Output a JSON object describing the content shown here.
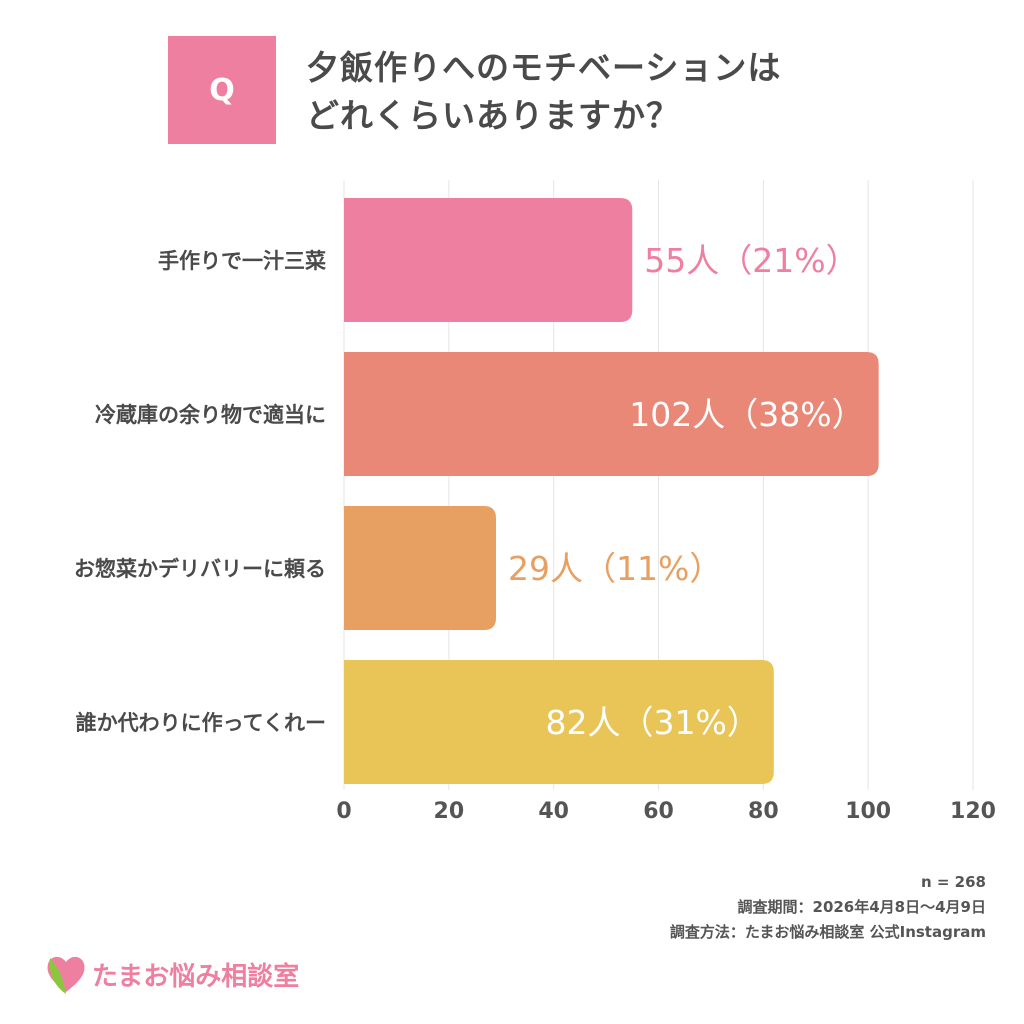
{
  "question": {
    "badge": "Q",
    "line1": "夕飯作りへのモチベーションは",
    "line2": "どれくらいありますか？"
  },
  "chart_data": {
    "type": "bar",
    "orientation": "horizontal",
    "categories": [
      "手作りで一汁三菜",
      "冷蔵庫の余り物で適当に",
      "お惣菜かデリバリーに頼る",
      "誰か代わりに作ってくれー"
    ],
    "values": [
      55,
      102,
      29,
      82
    ],
    "data_labels": [
      "55人（21%）",
      "102人（38%）",
      "29人（11%）",
      "82人（31%）"
    ],
    "colors": [
      "#EF7FA0",
      "#E98877",
      "#E8A062",
      "#E8C556"
    ],
    "xlim": [
      0,
      120
    ],
    "xticks": [
      "0",
      "20",
      "40",
      "60",
      "80",
      "100",
      "120"
    ],
    "grid": true
  },
  "footer": {
    "n": "n = 268",
    "period": "調査期間：2026年4月8日〜4月9日",
    "method": "調査方法：たまお悩み相談室 公式Instagram"
  },
  "logo": {
    "text": "たまお悩み相談室",
    "heart_color": "#EF7FA0",
    "leaf_color": "#8CC63F"
  }
}
